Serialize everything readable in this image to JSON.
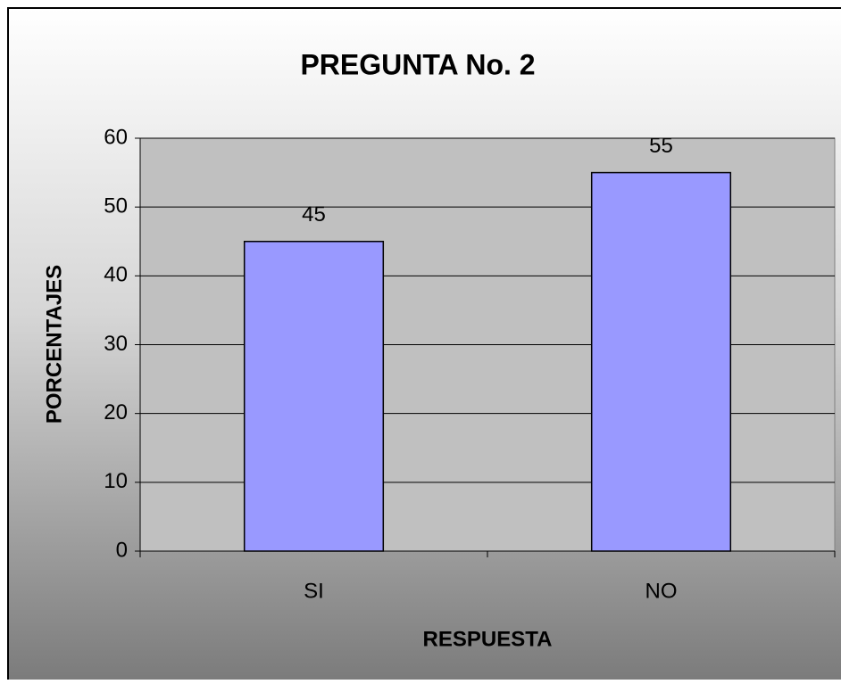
{
  "chart_data": {
    "type": "bar",
    "title": "PREGUNTA No. 2",
    "x_label": "RESPUESTA",
    "y_label": "PORCENTAJES",
    "categories": [
      "SI",
      "NO"
    ],
    "values": [
      45,
      55
    ],
    "color": "#9999ff",
    "ylim": [
      0,
      60
    ],
    "yticks": [
      0,
      10,
      20,
      30,
      40,
      50,
      60
    ],
    "grid": true
  }
}
